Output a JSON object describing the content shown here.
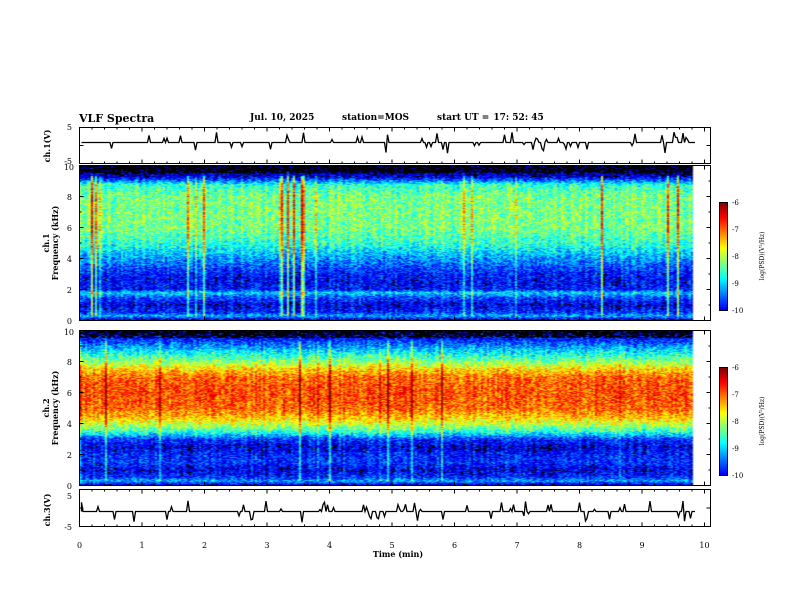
{
  "header": {
    "title": "VLF Spectra",
    "date": "Jul. 10, 2025",
    "station_label": "station=",
    "station": "MOS",
    "start_label": "start UT =",
    "start_time": "17: 52: 45"
  },
  "chart_data": [
    {
      "type": "line",
      "name": "ch.1 waveform",
      "ylabel": "ch.1(V)",
      "ylim": [
        -5,
        5
      ],
      "yticks": [
        "5",
        "-5"
      ],
      "xlim": [
        0,
        10
      ],
      "baseline": 0,
      "description_values": "flat trace near 0 V with small spikes"
    },
    {
      "type": "heatmap",
      "name": "ch.1 spectrogram",
      "ylabel": "ch.1 Frequency (kHz)",
      "ylabel_channel": "ch.1",
      "ylabel_axis": "Frequency (kHz)",
      "ylim": [
        0,
        10
      ],
      "yticks": [
        "0",
        "2",
        "4",
        "6",
        "8",
        "10"
      ],
      "xlim": [
        0,
        9.85
      ],
      "colorbar": {
        "label": "log(PSD)(V²/Hz)",
        "range": [
          -10,
          -6
        ],
        "ticks": [
          "-6",
          "-7",
          "-8",
          "-9",
          "-10"
        ]
      },
      "profile_khz": [
        0,
        0.3,
        0.5,
        1.0,
        1.5,
        1.8,
        2.0,
        2.5,
        3.0,
        4.0,
        5.0,
        6.0,
        7.0,
        8.0,
        8.8,
        9.3,
        10.0
      ],
      "profile_log_psd": [
        -9.8,
        -8.8,
        -9.3,
        -9.6,
        -9.2,
        -8.6,
        -9.4,
        -9.5,
        -9.4,
        -8.9,
        -8.3,
        -8.0,
        -8.0,
        -8.0,
        -8.3,
        -9.6,
        -10.0
      ]
    },
    {
      "type": "heatmap",
      "name": "ch.2 spectrogram",
      "ylabel": "ch.2 Frequency (kHz)",
      "ylabel_channel": "ch.2",
      "ylabel_axis": "Frequency (kHz)",
      "ylim": [
        0,
        10
      ],
      "yticks": [
        "0",
        "2",
        "4",
        "6",
        "8",
        "10"
      ],
      "xlim": [
        0,
        9.85
      ],
      "colorbar": {
        "label": "log(PSD)(V²/Hz)",
        "range": [
          -10,
          -6
        ],
        "ticks": [
          "-6",
          "-7",
          "-8",
          "-9",
          "-10"
        ]
      },
      "profile_khz": [
        0,
        0.3,
        0.5,
        1.0,
        1.5,
        2.0,
        2.5,
        3.0,
        3.5,
        4.0,
        4.5,
        5.0,
        6.0,
        7.0,
        7.5,
        8.0,
        8.5,
        9.0,
        9.5,
        10.0
      ],
      "profile_log_psd": [
        -9.8,
        -8.8,
        -9.3,
        -9.6,
        -9.3,
        -9.4,
        -9.6,
        -9.3,
        -8.3,
        -7.7,
        -7.2,
        -6.9,
        -6.8,
        -6.9,
        -7.3,
        -7.9,
        -8.4,
        -8.9,
        -9.4,
        -9.7
      ]
    },
    {
      "type": "line",
      "name": "ch.3 waveform",
      "ylabel": "ch.3(V)",
      "ylim": [
        -5,
        5
      ],
      "yticks": [
        "5",
        "-5"
      ],
      "xlim": [
        0,
        10
      ],
      "baseline": 0,
      "description_values": "flat trace near 0 V with small spikes"
    }
  ],
  "xaxis": {
    "label": "Time (min)",
    "range": [
      0,
      10
    ],
    "ticks": [
      "0",
      "1",
      "2",
      "3",
      "4",
      "5",
      "6",
      "7",
      "8",
      "9",
      "10"
    ]
  }
}
